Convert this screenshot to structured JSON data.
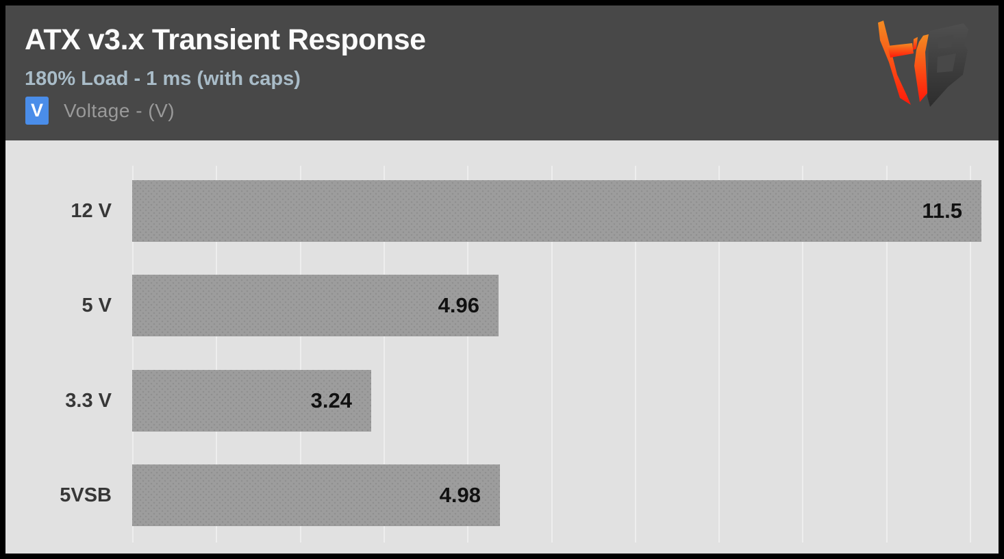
{
  "header": {
    "title": "ATX v3.x Transient Response",
    "subtitle": "180% Load - 1 ms (with caps)",
    "legend": {
      "swatch_letter": "V",
      "label": "Voltage - (V)"
    },
    "logo_icon": "hardware-busters-hb-logo"
  },
  "colors": {
    "frame_border": "#000000",
    "header_bg": "#484848",
    "chart_bg": "#e1e1e1",
    "gridline": "#eeeeee",
    "bar_fill": "#9d9d9d",
    "accent_blue": "#4a8de9",
    "title_text": "#fbfbfb",
    "subtitle_text": "#a9bcc8",
    "legend_text": "#9a9a9a",
    "category_text": "#373737",
    "value_text": "#111111",
    "logo_orange_top": "#f28b22",
    "logo_red_bottom": "#ff1a0a",
    "logo_dark": "#383838"
  },
  "chart_data": {
    "type": "bar",
    "orientation": "horizontal",
    "title": "ATX v3.x Transient Response",
    "subtitle": "180% Load - 1 ms (with caps)",
    "legend": [
      {
        "label": "Voltage - (V)",
        "swatch_letter": "V",
        "color": "#4a8de9"
      }
    ],
    "categories": [
      "12 V",
      "5 V",
      "3.3 V",
      "5VSB"
    ],
    "values": [
      11.5,
      4.96,
      3.24,
      4.98
    ],
    "data_labels": [
      "11.5",
      "4.96",
      "3.24",
      "4.98"
    ],
    "xlim": [
      0,
      11.5
    ],
    "xlabel": "",
    "ylabel": "",
    "grid": "vertical-only",
    "gridline_count": 11,
    "axis_tick_labels_visible": false,
    "legend_position": "top-left-under-subtitle"
  }
}
